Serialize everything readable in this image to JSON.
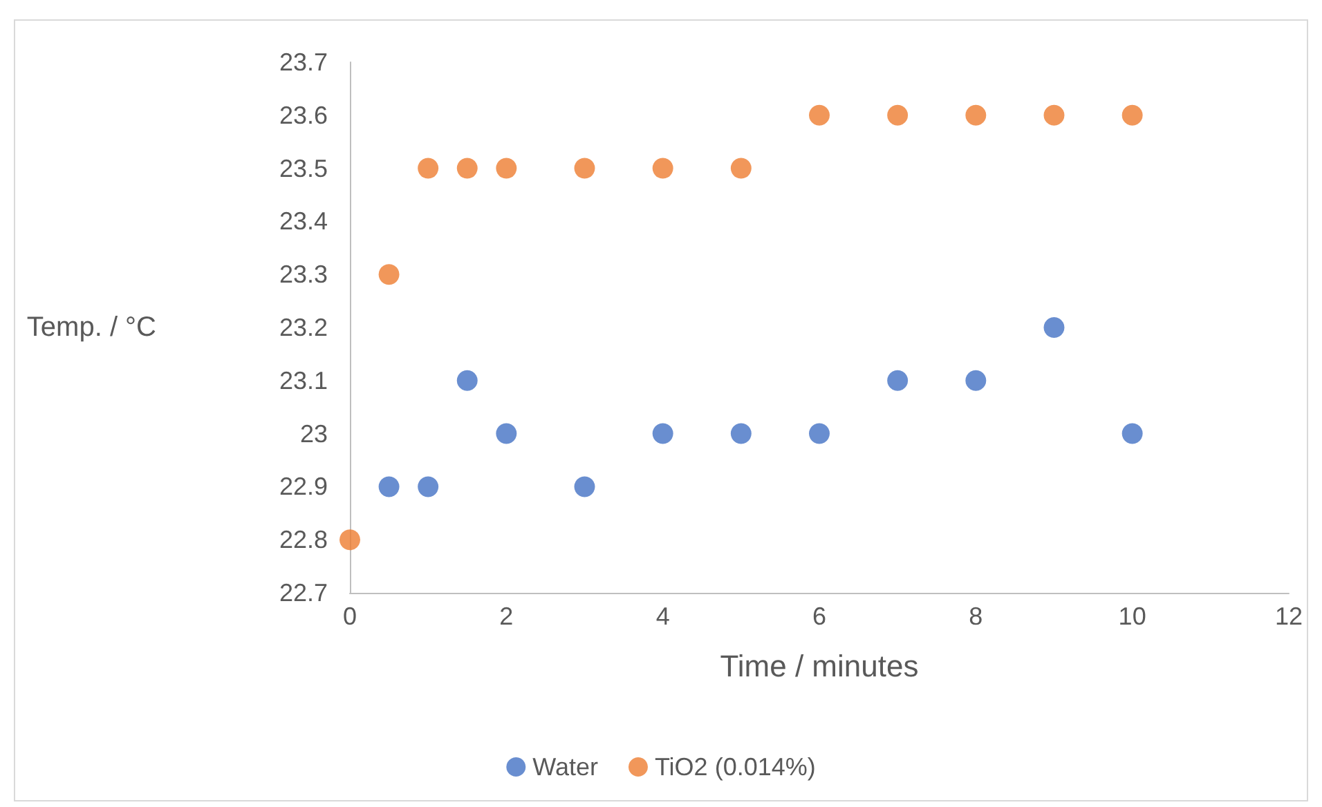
{
  "chart_data": {
    "type": "scatter",
    "xlabel": "Time / minutes",
    "ylabel": "Temp. / °C",
    "xlim": [
      0,
      12
    ],
    "xticks": [
      0,
      2,
      4,
      6,
      8,
      10,
      12
    ],
    "ylim": [
      22.7,
      23.7
    ],
    "yticks": [
      22.7,
      22.8,
      22.9,
      23,
      23.1,
      23.2,
      23.3,
      23.4,
      23.5,
      23.6,
      23.7
    ],
    "grid": false,
    "legend": "bottom",
    "marker": "circle",
    "series": [
      {
        "name": "Water",
        "color": "#4472c4",
        "x": [
          0.5,
          1,
          1.5,
          2,
          3,
          4,
          5,
          6,
          7,
          8,
          9,
          10
        ],
        "values": [
          22.9,
          22.9,
          23.1,
          23,
          22.9,
          23,
          23,
          23,
          23.1,
          23.1,
          23.2,
          23
        ]
      },
      {
        "name": "TiO2 (0.014%)",
        "color": "#ed7d31",
        "x": [
          0,
          0.5,
          1,
          1.5,
          2,
          3,
          4,
          5,
          6,
          7,
          8,
          9,
          10
        ],
        "values": [
          22.8,
          23.3,
          23.5,
          23.5,
          23.5,
          23.5,
          23.5,
          23.5,
          23.6,
          23.6,
          23.6,
          23.6,
          23.6
        ]
      }
    ]
  }
}
